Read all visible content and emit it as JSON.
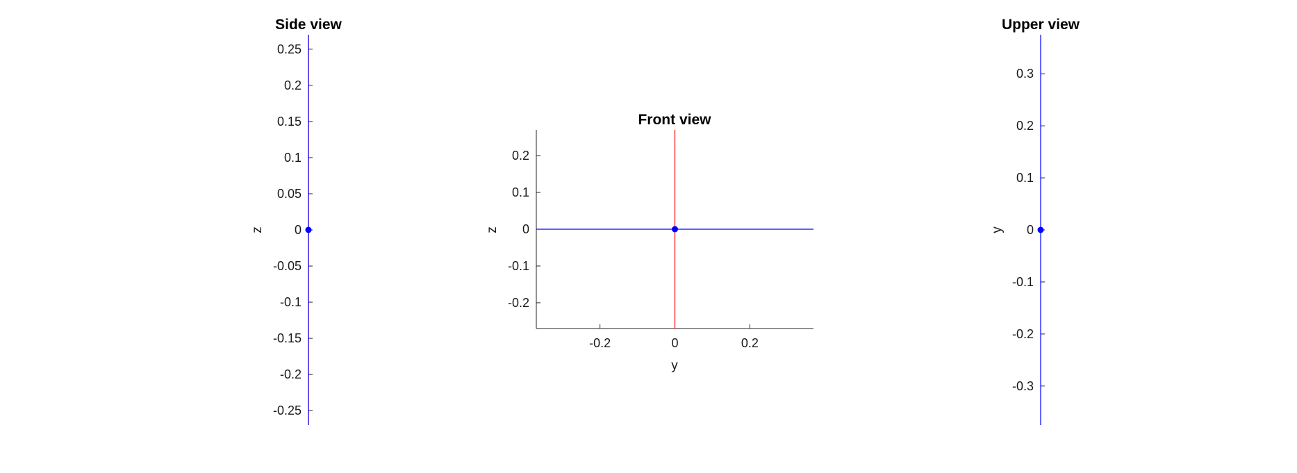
{
  "chart_data": [
    {
      "id": "side",
      "type": "line",
      "title": "Side view",
      "xlabel": "",
      "ylabel": "z",
      "show_x_axis": false,
      "xlim": [
        -0.001,
        0.001
      ],
      "ylim": [
        -0.27,
        0.27
      ],
      "yticks": [
        -0.25,
        -0.2,
        -0.15,
        -0.1,
        -0.05,
        0,
        0.05,
        0.1,
        0.15,
        0.2,
        0.25
      ],
      "ytick_labels": [
        "-0.25",
        "-0.2",
        "-0.15",
        "-0.1",
        "-0.05",
        "0",
        "0.05",
        "0.1",
        "0.15",
        "0.2",
        "0.25"
      ],
      "xticks": [],
      "xtick_labels": [],
      "grid": false,
      "series": [
        {
          "x": [
            0,
            0
          ],
          "y": [
            -0.27,
            0.27
          ],
          "color": "#ff0000"
        },
        {
          "x": [
            0,
            0
          ],
          "y": [
            -0.27,
            0.27
          ],
          "color": "#0000ff"
        }
      ],
      "points": [
        {
          "x": 0,
          "y": 0,
          "color": "#0000ff"
        }
      ]
    },
    {
      "id": "front",
      "type": "line",
      "title": "Front view",
      "xlabel": "y",
      "ylabel": "z",
      "show_x_axis": true,
      "xlim": [
        -0.37,
        0.37
      ],
      "ylim": [
        -0.27,
        0.27
      ],
      "xticks": [
        -0.2,
        0,
        0.2
      ],
      "xtick_labels": [
        "-0.2",
        "0",
        "0.2"
      ],
      "yticks": [
        -0.2,
        -0.1,
        0,
        0.1,
        0.2
      ],
      "ytick_labels": [
        "-0.2",
        "-0.1",
        "0",
        "0.1",
        "0.2"
      ],
      "grid": false,
      "series": [
        {
          "x": [
            0,
            0
          ],
          "y": [
            -0.27,
            0.27
          ],
          "color": "#ff0000"
        },
        {
          "x": [
            -0.37,
            0.37
          ],
          "y": [
            0,
            0
          ],
          "color": "#0000ff"
        }
      ],
      "points": [
        {
          "x": 0,
          "y": 0,
          "color": "#0000ff"
        }
      ]
    },
    {
      "id": "upper",
      "type": "line",
      "title": "Upper view",
      "xlabel": "",
      "ylabel": "y",
      "show_x_axis": false,
      "xlim": [
        -0.001,
        0.001
      ],
      "ylim": [
        -0.375,
        0.375
      ],
      "yticks": [
        -0.3,
        -0.2,
        -0.1,
        0,
        0.1,
        0.2,
        0.3
      ],
      "ytick_labels": [
        "-0.3",
        "-0.2",
        "-0.1",
        "0",
        "0.1",
        "0.2",
        "0.3"
      ],
      "xticks": [],
      "xtick_labels": [],
      "grid": false,
      "series": [
        {
          "x": [
            0,
            0
          ],
          "y": [
            -0.375,
            0.375
          ],
          "color": "#0000ff"
        }
      ],
      "points": [
        {
          "x": 0,
          "y": 0,
          "color": "#0000ff"
        }
      ]
    }
  ]
}
